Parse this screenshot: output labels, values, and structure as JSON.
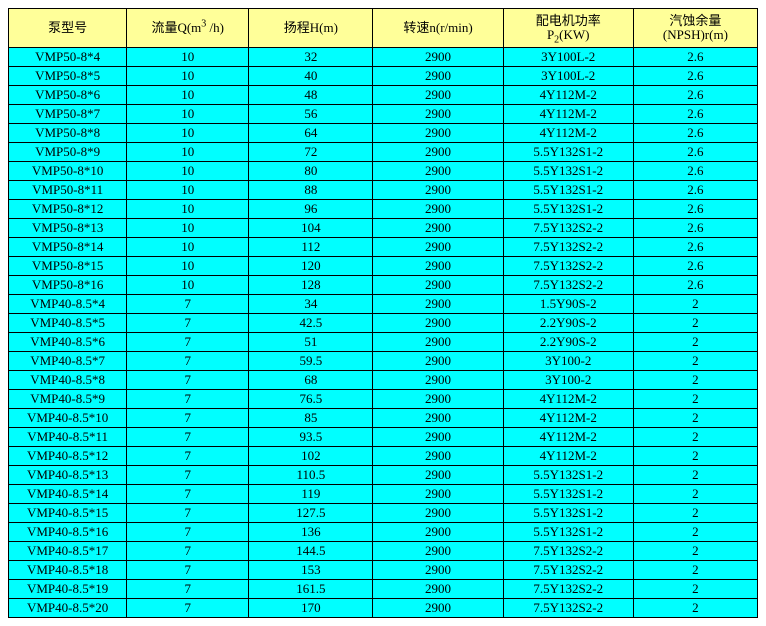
{
  "table": {
    "header_bg": "#ffff99",
    "body_bg": "#00ffff",
    "border_color": "#000000",
    "columns": [
      {
        "label_html": "泵型号"
      },
      {
        "label_html": "流量Q(m<sup>3</sup> /h)"
      },
      {
        "label_html": "扬程H(m)"
      },
      {
        "label_html": "转速n(r/min)"
      },
      {
        "label_html": "配电机功率<br>P<sub>2</sub>(KW)"
      },
      {
        "label_html": "汽蚀余量<br>(NPSH)r(m)"
      }
    ],
    "rows": [
      [
        "VMP50-8*4",
        "10",
        "32",
        "2900",
        "3Y100L-2",
        "2.6"
      ],
      [
        "VMP50-8*5",
        "10",
        "40",
        "2900",
        "3Y100L-2",
        "2.6"
      ],
      [
        "VMP50-8*6",
        "10",
        "48",
        "2900",
        "4Y112M-2",
        "2.6"
      ],
      [
        "VMP50-8*7",
        "10",
        "56",
        "2900",
        "4Y112M-2",
        "2.6"
      ],
      [
        "VMP50-8*8",
        "10",
        "64",
        "2900",
        "4Y112M-2",
        "2.6"
      ],
      [
        "VMP50-8*9",
        "10",
        "72",
        "2900",
        "5.5Y132S1-2",
        "2.6"
      ],
      [
        "VMP50-8*10",
        "10",
        "80",
        "2900",
        "5.5Y132S1-2",
        "2.6"
      ],
      [
        "VMP50-8*11",
        "10",
        "88",
        "2900",
        "5.5Y132S1-2",
        "2.6"
      ],
      [
        "VMP50-8*12",
        "10",
        "96",
        "2900",
        "5.5Y132S1-2",
        "2.6"
      ],
      [
        "VMP50-8*13",
        "10",
        "104",
        "2900",
        "7.5Y132S2-2",
        "2.6"
      ],
      [
        "VMP50-8*14",
        "10",
        "112",
        "2900",
        "7.5Y132S2-2",
        "2.6"
      ],
      [
        "VMP50-8*15",
        "10",
        "120",
        "2900",
        "7.5Y132S2-2",
        "2.6"
      ],
      [
        "VMP50-8*16",
        "10",
        "128",
        "2900",
        "7.5Y132S2-2",
        "2.6"
      ],
      [
        "VMP40-8.5*4",
        "7",
        "34",
        "2900",
        "1.5Y90S-2",
        "2"
      ],
      [
        "VMP40-8.5*5",
        "7",
        "42.5",
        "2900",
        "2.2Y90S-2",
        "2"
      ],
      [
        "VMP40-8.5*6",
        "7",
        "51",
        "2900",
        "2.2Y90S-2",
        "2"
      ],
      [
        "VMP40-8.5*7",
        "7",
        "59.5",
        "2900",
        "3Y100-2",
        "2"
      ],
      [
        "VMP40-8.5*8",
        "7",
        "68",
        "2900",
        "3Y100-2",
        "2"
      ],
      [
        "VMP40-8.5*9",
        "7",
        "76.5",
        "2900",
        "4Y112M-2",
        "2"
      ],
      [
        "VMP40-8.5*10",
        "7",
        "85",
        "2900",
        "4Y112M-2",
        "2"
      ],
      [
        "VMP40-8.5*11",
        "7",
        "93.5",
        "2900",
        "4Y112M-2",
        "2"
      ],
      [
        "VMP40-8.5*12",
        "7",
        "102",
        "2900",
        "4Y112M-2",
        "2"
      ],
      [
        "VMP40-8.5*13",
        "7",
        "110.5",
        "2900",
        "5.5Y132S1-2",
        "2"
      ],
      [
        "VMP40-8.5*14",
        "7",
        "119",
        "2900",
        "5.5Y132S1-2",
        "2"
      ],
      [
        "VMP40-8.5*15",
        "7",
        "127.5",
        "2900",
        "5.5Y132S1-2",
        "2"
      ],
      [
        "VMP40-8.5*16",
        "7",
        "136",
        "2900",
        "5.5Y132S1-2",
        "2"
      ],
      [
        "VMP40-8.5*17",
        "7",
        "144.5",
        "2900",
        "7.5Y132S2-2",
        "2"
      ],
      [
        "VMP40-8.5*18",
        "7",
        "153",
        "2900",
        "7.5Y132S2-2",
        "2"
      ],
      [
        "VMP40-8.5*19",
        "7",
        "161.5",
        "2900",
        "7.5Y132S2-2",
        "2"
      ],
      [
        "VMP40-8.5*20",
        "7",
        "170",
        "2900",
        "7.5Y132S2-2",
        "2"
      ]
    ]
  }
}
